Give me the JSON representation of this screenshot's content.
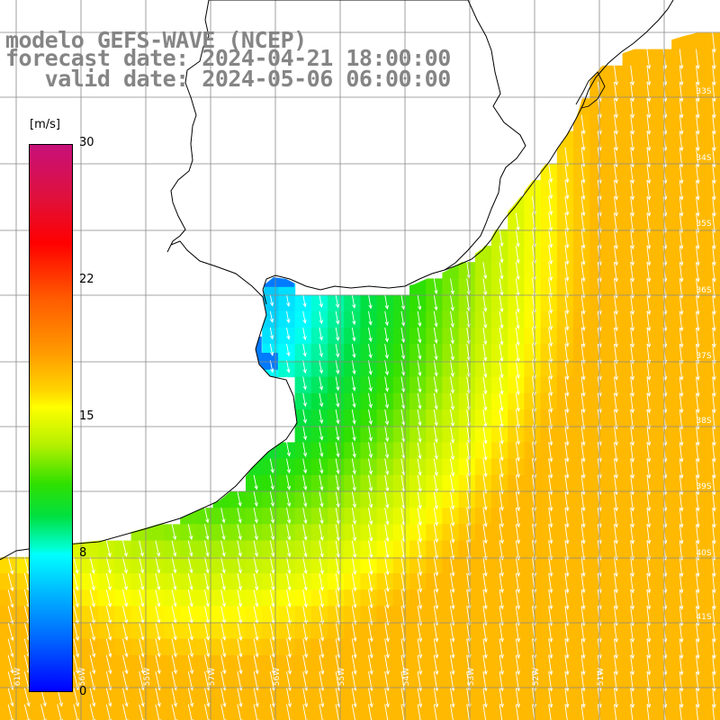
{
  "title": {
    "line1": "modelo GEFS-WAVE (NCEP)",
    "line2": "forecast date: 2024-04-21 18:00:00",
    "line3": "   valid date: 2024-05-06 06:00:00"
  },
  "colorbar": {
    "unit": "[m/s]",
    "min": 0,
    "max": 30,
    "ticks": [
      "30",
      "22",
      "15",
      "8",
      "0"
    ],
    "tick_values": [
      30,
      22,
      15,
      8,
      0
    ]
  },
  "map": {
    "lon_range": [
      -61,
      -50
    ],
    "lat_range": [
      -41,
      -31
    ],
    "lat_labels": [
      "33S",
      "34S",
      "35S",
      "36S",
      "37S",
      "38S",
      "39S",
      "40S",
      "41S"
    ],
    "lon_labels": [
      "61W",
      "56W",
      "55W",
      "57W",
      "56W",
      "55W",
      "54W",
      "53W",
      "52W",
      "51W"
    ],
    "land_color": "#ffffff",
    "grid_color": "#888888",
    "arrow_color": "#ffffff",
    "coast_color": "#000000"
  }
}
